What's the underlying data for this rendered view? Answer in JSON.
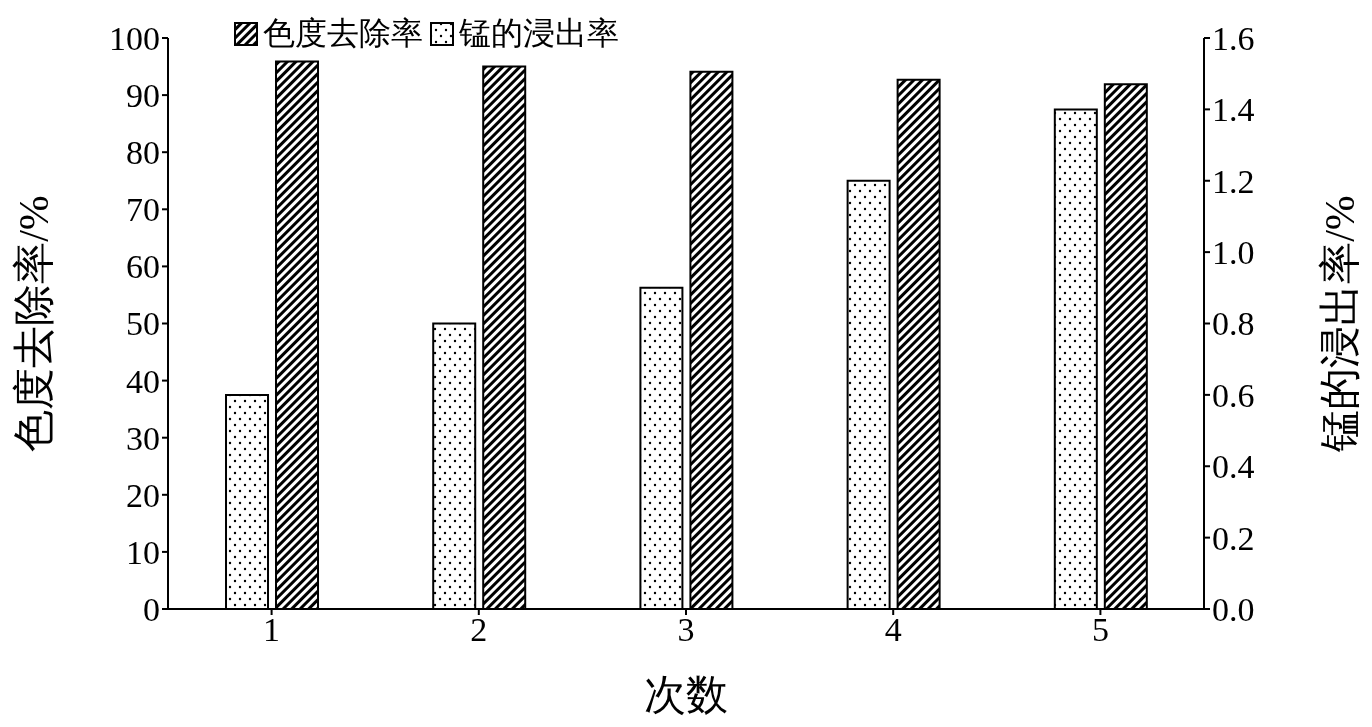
{
  "chart_data": {
    "type": "bar",
    "xlabel": "次数",
    "ylabel": "色度去除率/%",
    "y2label": "锰的浸出率/%",
    "categories": [
      "1",
      "2",
      "3",
      "4",
      "5"
    ],
    "series": [
      {
        "name": "锰的浸出率",
        "color": "#000000",
        "axis": "y2",
        "values": [
          0.6,
          0.8,
          0.9,
          1.2,
          1.4
        ]
      },
      {
        "name": "色度去除率",
        "color": "#000000",
        "values": [
          95.9,
          95.0,
          94.1,
          92.7,
          91.9
        ]
      }
    ],
    "ylim": [
      0,
      100
    ],
    "yticks": [
      0,
      10,
      20,
      30,
      40,
      50,
      60,
      70,
      80,
      90,
      100
    ],
    "y2lim": [
      0,
      1.6
    ],
    "y2ticks": [
      {
        "value": 0,
        "label": "0.0"
      },
      {
        "value": 0.2,
        "label": "0.2"
      },
      {
        "value": 0.4,
        "label": "0.4"
      },
      {
        "value": 0.6,
        "label": "0.6"
      },
      {
        "value": 0.8,
        "label": "0.8"
      },
      {
        "value": 1,
        "label": "1.0"
      },
      {
        "value": 1.2,
        "label": "1.2"
      },
      {
        "value": 1.4,
        "label": "1.4"
      },
      {
        "value": 1.6,
        "label": "1.6"
      }
    ],
    "legend": "top left",
    "grid": false
  }
}
